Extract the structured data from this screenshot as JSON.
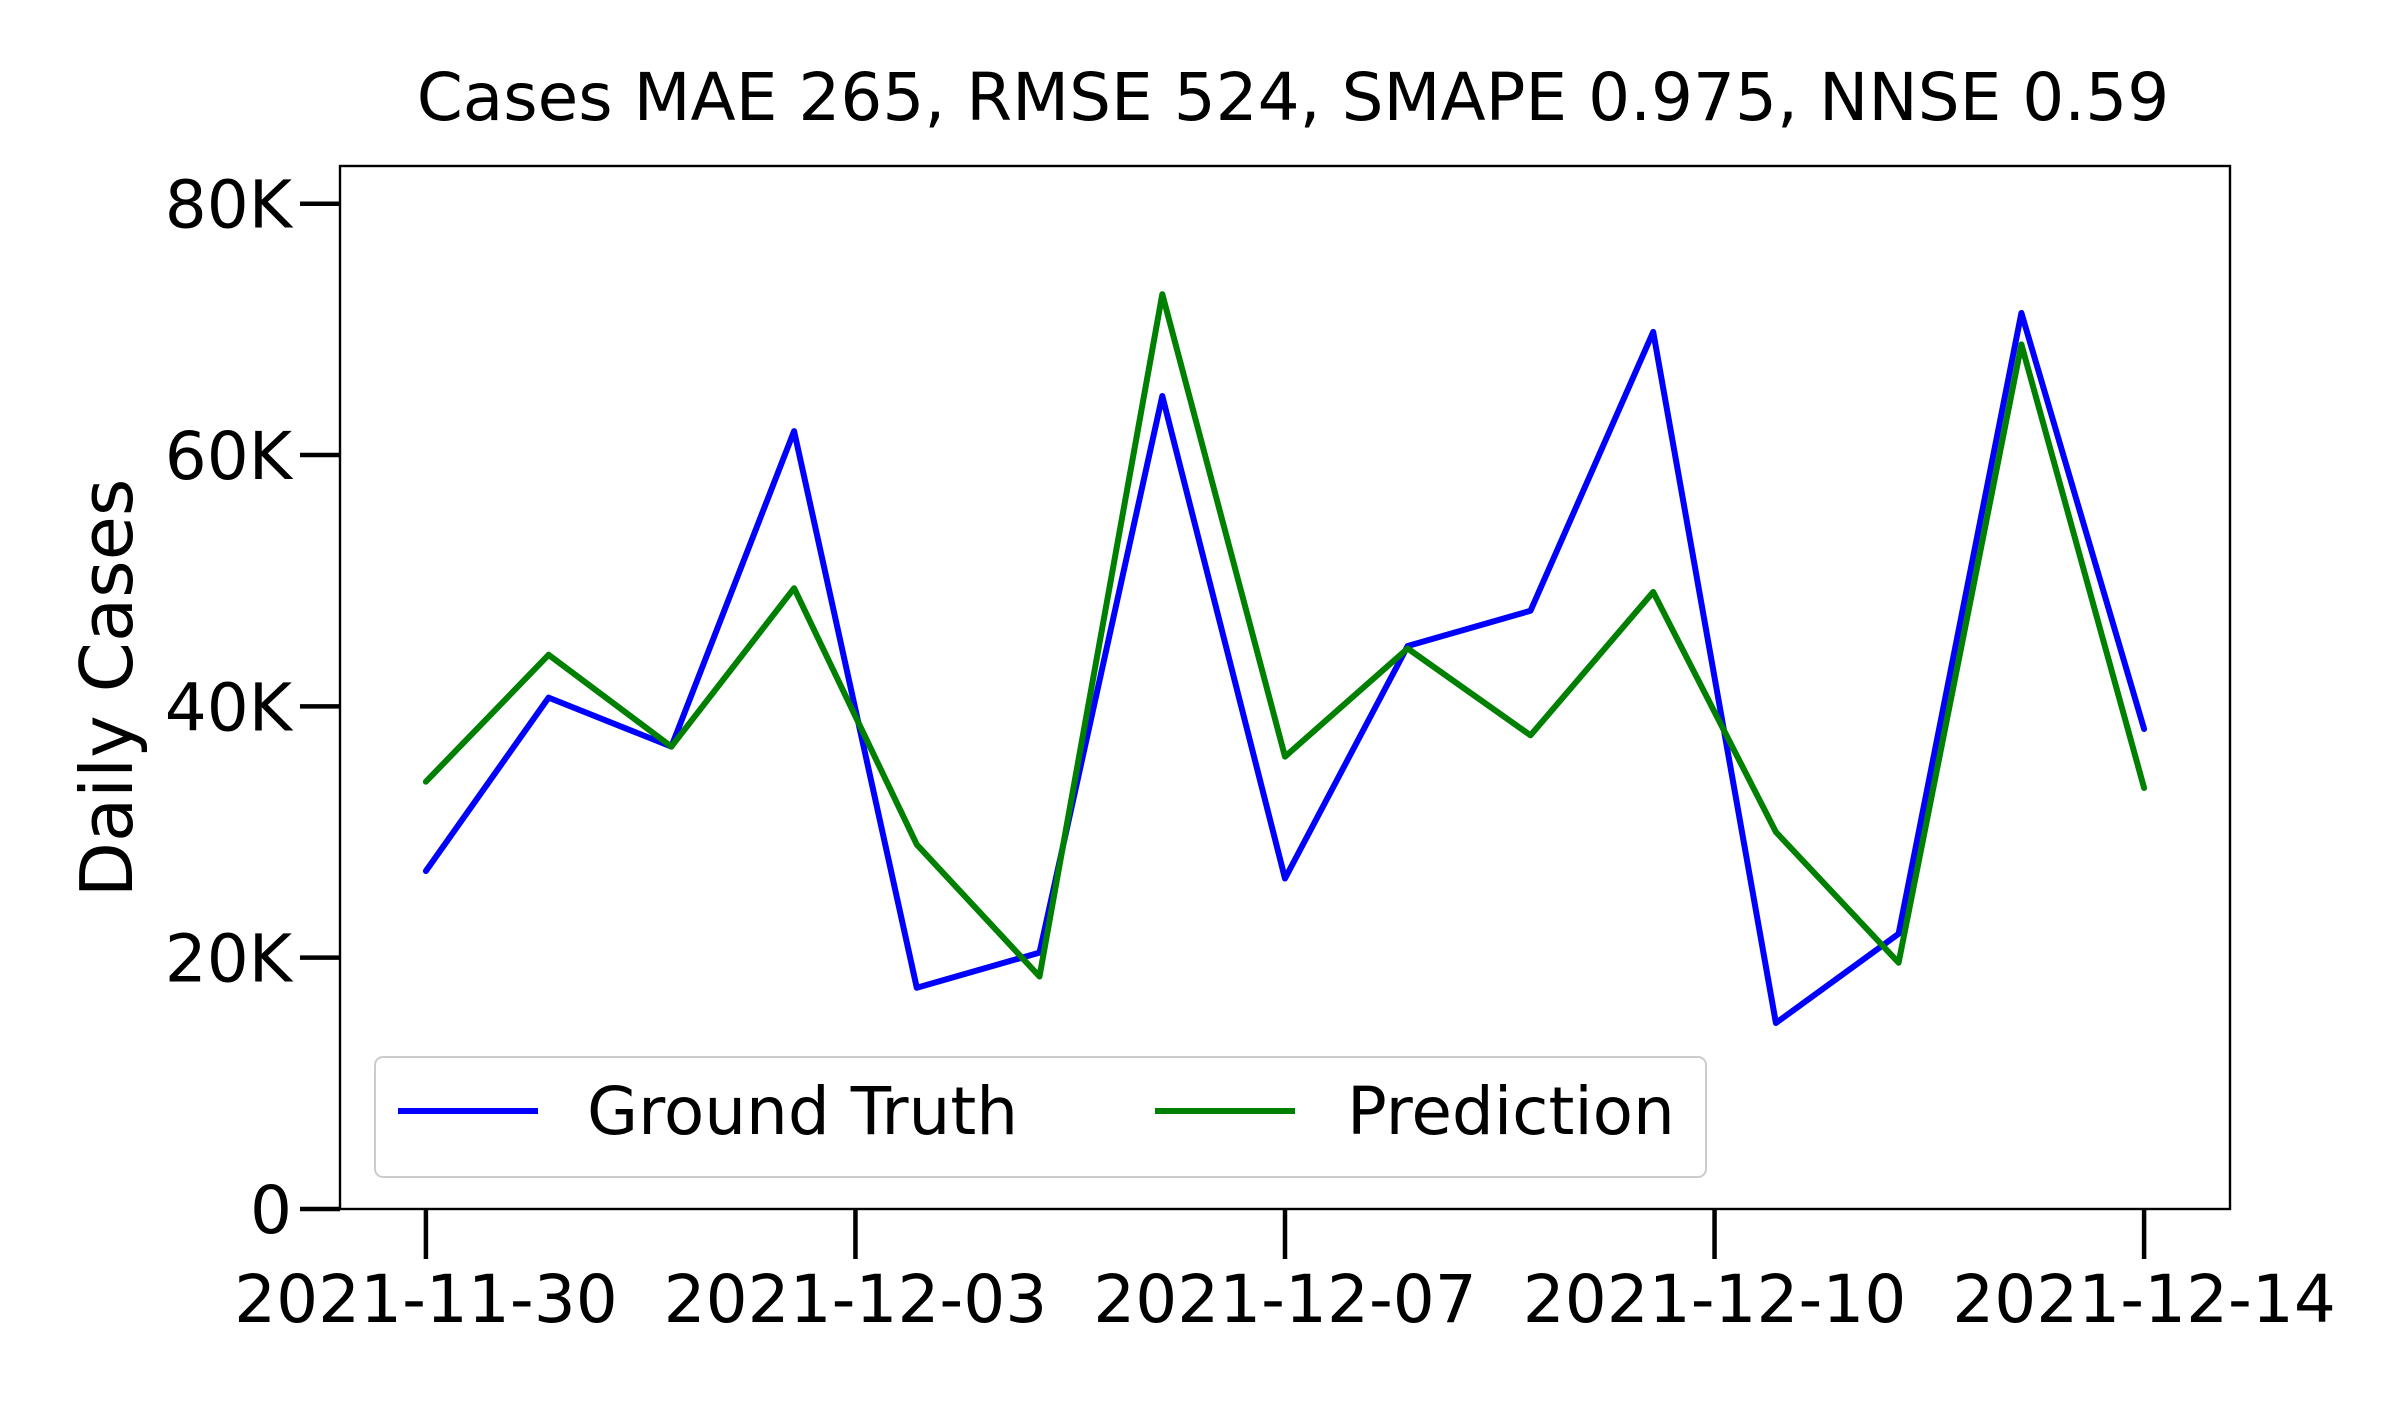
{
  "chart_data": {
    "type": "line",
    "title": "Cases MAE 265, RMSE 524, SMAPE 0.975, NNSE 0.59",
    "xlabel": "",
    "ylabel": "Daily Cases",
    "x": [
      "2021-11-30",
      "2021-12-01",
      "2021-12-02",
      "2021-12-03",
      "2021-12-04",
      "2021-12-05",
      "2021-12-06",
      "2021-12-07",
      "2021-12-08",
      "2021-12-09",
      "2021-12-10",
      "2021-12-11",
      "2021-12-12",
      "2021-12-13",
      "2021-12-14"
    ],
    "x_ticks": [
      "2021-11-30",
      "2021-12-03",
      "2021-12-07",
      "2021-12-10",
      "2021-12-14"
    ],
    "x_tick_positions": [
      0,
      3.5,
      7,
      10.5,
      14
    ],
    "y_ticks": [
      0,
      20000,
      40000,
      60000,
      80000
    ],
    "y_tick_labels": [
      "0",
      "20K",
      "40K",
      "60K",
      "80K"
    ],
    "ylim": [
      0,
      83000
    ],
    "xlim": [
      -0.7,
      14.7
    ],
    "grid": false,
    "legend_position": "lower-left",
    "series": [
      {
        "name": "Ground Truth",
        "color": "#0000ff",
        "values": [
          26900,
          40700,
          36800,
          61900,
          17600,
          20400,
          64700,
          26300,
          44800,
          47600,
          69800,
          14800,
          21900,
          71300,
          38200
        ]
      },
      {
        "name": "Prediction",
        "color": "#008000",
        "values": [
          34000,
          44100,
          36800,
          49400,
          29000,
          18500,
          72800,
          36000,
          44600,
          37700,
          49100,
          30000,
          19600,
          68800,
          33500
        ]
      }
    ]
  }
}
